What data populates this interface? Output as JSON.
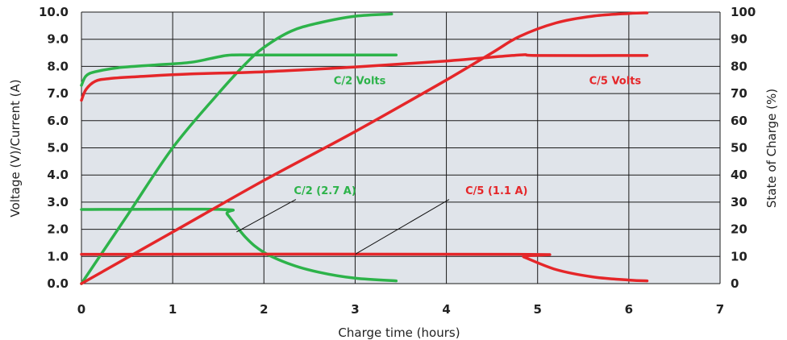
{
  "chart_data": {
    "type": "line",
    "xlabel": "Charge time (hours)",
    "ylabel_left": "Voltage (V)/Current (A)",
    "ylabel_right": "State of Charge (%)",
    "xlim": [
      0,
      7
    ],
    "ylim_left": [
      0,
      10
    ],
    "ylim_right": [
      0,
      100
    ],
    "grid": true,
    "x_ticks": [
      "0",
      "1",
      "2",
      "3",
      "4",
      "5",
      "6",
      "7"
    ],
    "y_left_ticks": [
      "0.0",
      "1.0",
      "2.0",
      "3.0",
      "4.0",
      "5.0",
      "6.0",
      "7.0",
      "8.0",
      "9.0",
      "10.0"
    ],
    "y_right_ticks": [
      "0",
      "10",
      "20",
      "30",
      "40",
      "50",
      "60",
      "70",
      "80",
      "90",
      "100"
    ],
    "colors": {
      "c2": "#2db34a",
      "c5": "#e52629",
      "plot_bg": "#e0e4ea",
      "grid": "#1a1a1a"
    },
    "series": [
      {
        "key": "c2_volts",
        "axis": "left",
        "color": "#2db34a",
        "x": [
          0,
          0.05,
          0.15,
          0.4,
          0.8,
          1.2,
          1.5,
          1.65,
          2.0,
          3.0,
          3.45
        ],
        "y": [
          7.3,
          7.65,
          7.8,
          7.95,
          8.05,
          8.15,
          8.35,
          8.42,
          8.42,
          8.42,
          8.42
        ]
      },
      {
        "key": "c2_soc",
        "axis": "right",
        "color": "#2db34a",
        "x": [
          0,
          0.5,
          1.0,
          1.5,
          1.8,
          2.0,
          2.3,
          2.6,
          3.0,
          3.4
        ],
        "y": [
          0,
          25,
          50,
          70,
          81,
          87,
          93,
          96,
          98.5,
          99.3
        ]
      },
      {
        "key": "c2_current",
        "axis": "left",
        "color": "#2db34a",
        "x": [
          0,
          1.54,
          1.6,
          1.8,
          2.0,
          2.3,
          2.6,
          3.0,
          3.45
        ],
        "y": [
          2.73,
          2.73,
          2.55,
          1.7,
          1.15,
          0.7,
          0.42,
          0.2,
          0.1
        ]
      },
      {
        "key": "c5_volts",
        "axis": "left",
        "color": "#e52629",
        "x": [
          0,
          0.05,
          0.15,
          0.3,
          0.6,
          1.2,
          2.0,
          3.0,
          4.0,
          4.8,
          5.0,
          6.2
        ],
        "y": [
          6.75,
          7.15,
          7.45,
          7.55,
          7.62,
          7.72,
          7.8,
          7.98,
          8.2,
          8.42,
          8.4,
          8.4
        ]
      },
      {
        "key": "c5_soc",
        "axis": "right",
        "color": "#e52629",
        "x": [
          0,
          1.0,
          2.0,
          3.0,
          4.0,
          4.5,
          4.8,
          5.2,
          5.6,
          6.0,
          6.2
        ],
        "y": [
          0,
          19,
          38,
          56,
          75,
          85,
          91,
          96,
          98.5,
          99.5,
          99.7
        ]
      },
      {
        "key": "c5_current",
        "axis": "left",
        "color": "#e52629",
        "x": [
          0,
          4.77,
          4.85,
          5.2,
          5.6,
          6.0,
          6.2
        ],
        "y": [
          1.08,
          1.08,
          0.98,
          0.52,
          0.25,
          0.13,
          0.1
        ]
      }
    ],
    "annotations": [
      {
        "text": "C/2 Volts",
        "color": "#2db34a",
        "x": 3.05,
        "y": 7.35
      },
      {
        "text": "C/5 Volts",
        "color": "#e52629",
        "x": 5.85,
        "y": 7.35
      },
      {
        "text": "C/2 (2.7 A)",
        "color": "#2db34a",
        "x": 2.67,
        "y": 3.3,
        "pointer_from": [
          2.35,
          3.1
        ],
        "pointer_to": [
          1.7,
          1.9
        ]
      },
      {
        "text": "C/5 (1.1 A)",
        "color": "#e52629",
        "x": 4.55,
        "y": 3.3,
        "pointer_from": [
          4.03,
          3.1
        ],
        "pointer_to": [
          3.0,
          1.08
        ]
      }
    ]
  }
}
